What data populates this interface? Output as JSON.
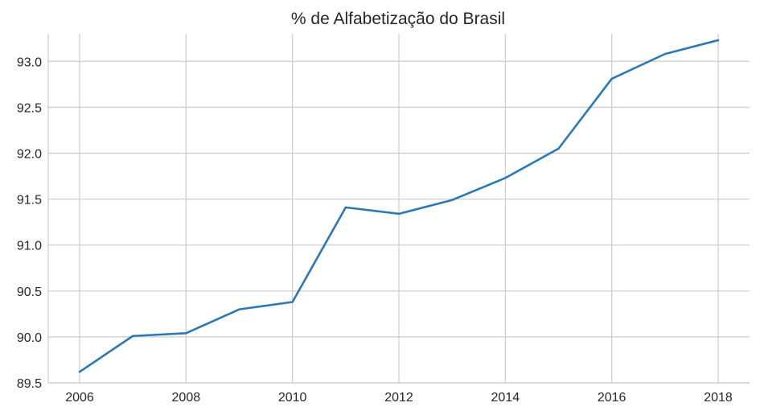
{
  "chart_data": {
    "type": "line",
    "title": "% de Alfabetização do Brasil",
    "xlabel": "",
    "ylabel": "",
    "x": [
      2006,
      2007,
      2008,
      2009,
      2010,
      2011,
      2012,
      2013,
      2014,
      2015,
      2016,
      2017,
      2018
    ],
    "series": [
      {
        "name": "",
        "color": "#2a78b5",
        "values": [
          89.62,
          90.01,
          90.04,
          90.3,
          90.38,
          91.41,
          91.34,
          91.49,
          91.73,
          92.05,
          92.81,
          93.08,
          93.23
        ]
      }
    ],
    "xlim": [
      2006,
      2018
    ],
    "ylim": [
      89.5,
      93.3
    ],
    "xticks": [
      "2006",
      "2008",
      "2010",
      "2012",
      "2014",
      "2016",
      "2018"
    ],
    "yticks": [
      "89.5",
      "90.0",
      "90.5",
      "91.0",
      "91.5",
      "92.0",
      "92.5",
      "93.0"
    ],
    "grid": true,
    "legend": "none"
  }
}
